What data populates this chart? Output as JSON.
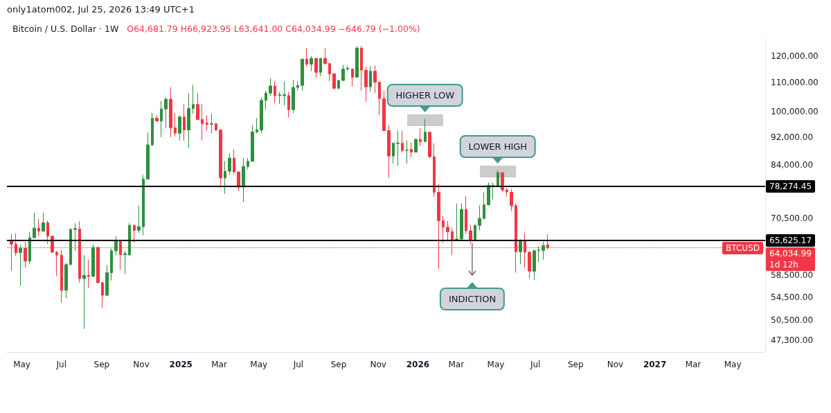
{
  "chart_data": {
    "type": "candlestick",
    "title": "Bitcoin / U.S. Dollar · 1W",
    "subtitle": "O64,681.79 H66,923.95 L63,641.00 C64,034.99 −646.79 (−1.00%)",
    "annotations": [
      "only1atom002, Jul 25, 2026 13:49 UTC+1",
      "BTCUSD",
      "1d 12h",
      {
        "text": "HIGHER LOW",
        "x": "2026-01-12",
        "y": 97700
      },
      {
        "text": "LOWER HIGH",
        "x": "2026-05-04",
        "y": 82600
      },
      "INDICTION"
    ],
    "x": [
      "2024-04-15",
      "2024-04-22",
      "2024-04-29",
      "2024-05-06",
      "2024-05-13",
      "2024-05-20",
      "2024-05-27",
      "2024-06-03",
      "2024-06-10",
      "2024-06-17",
      "2024-06-24",
      "2024-07-01",
      "2024-07-08",
      "2024-07-15",
      "2024-07-22",
      "2024-07-29",
      "2024-08-05",
      "2024-08-12",
      "2024-08-19",
      "2024-08-26",
      "2024-09-02",
      "2024-09-09",
      "2024-09-16",
      "2024-09-23",
      "2024-09-30",
      "2024-10-07",
      "2024-10-14",
      "2024-10-21",
      "2024-10-28",
      "2024-11-04",
      "2024-11-11",
      "2024-11-18",
      "2024-11-25",
      "2024-12-02",
      "2024-12-09",
      "2024-12-16",
      "2024-12-23",
      "2024-12-30",
      "2025-01-06",
      "2025-01-13",
      "2025-01-20",
      "2025-01-27",
      "2025-02-03",
      "2025-02-10",
      "2025-02-17",
      "2025-02-24",
      "2025-03-03",
      "2025-03-10",
      "2025-03-17",
      "2025-03-24",
      "2025-03-31",
      "2025-04-07",
      "2025-04-14",
      "2025-04-21",
      "2025-04-28",
      "2025-05-05",
      "2025-05-12",
      "2025-05-19",
      "2025-05-26",
      "2025-06-02",
      "2025-06-09",
      "2025-06-16",
      "2025-06-23",
      "2025-06-30",
      "2025-07-07",
      "2025-07-14",
      "2025-07-21",
      "2025-07-28",
      "2025-08-04",
      "2025-08-11",
      "2025-08-18",
      "2025-08-25",
      "2025-09-01",
      "2025-09-08",
      "2025-09-15",
      "2025-09-22",
      "2025-09-29",
      "2025-10-06",
      "2025-10-13",
      "2025-10-20",
      "2025-10-27",
      "2025-11-03",
      "2025-11-10",
      "2025-11-17",
      "2025-11-24",
      "2025-12-01",
      "2025-12-08",
      "2025-12-15",
      "2025-12-22",
      "2025-12-29",
      "2026-01-05",
      "2026-01-12",
      "2026-01-19",
      "2026-01-26",
      "2026-02-02",
      "2026-02-09",
      "2026-02-16",
      "2026-02-23",
      "2026-03-02",
      "2026-03-09",
      "2026-03-16",
      "2026-03-23",
      "2026-03-30",
      "2026-04-06",
      "2026-04-13",
      "2026-04-20",
      "2026-04-27",
      "2026-05-04",
      "2026-05-11",
      "2026-05-18",
      "2026-05-25",
      "2026-06-01",
      "2026-06-08",
      "2026-06-15",
      "2026-06-22",
      "2026-06-29",
      "2026-07-06",
      "2026-07-13",
      "2026-07-20"
    ],
    "ohlc": [
      [
        65600,
        67000,
        59400,
        64800
      ],
      [
        64800,
        67100,
        62300,
        63000
      ],
      [
        63000,
        64600,
        56500,
        63900
      ],
      [
        63900,
        65300,
        60000,
        61300
      ],
      [
        61300,
        67500,
        60700,
        66200
      ],
      [
        66200,
        71800,
        66000,
        68300
      ],
      [
        68300,
        70400,
        66500,
        67600
      ],
      [
        67600,
        71800,
        67500,
        69500
      ],
      [
        69500,
        70000,
        64800,
        66500
      ],
      [
        66500,
        66600,
        63000,
        63100
      ],
      [
        63100,
        63400,
        58300,
        62500
      ],
      [
        62500,
        63600,
        53500,
        55700
      ],
      [
        55700,
        60900,
        54300,
        60600
      ],
      [
        60600,
        68300,
        60500,
        68000
      ],
      [
        68000,
        69400,
        63400,
        68200
      ],
      [
        68100,
        69800,
        57100,
        57900
      ],
      [
        57900,
        62500,
        49100,
        58500
      ],
      [
        58500,
        61600,
        56100,
        58300
      ],
      [
        58300,
        64800,
        58200,
        64100
      ],
      [
        64100,
        64300,
        57000,
        57100
      ],
      [
        57100,
        57200,
        52600,
        54800
      ],
      [
        54800,
        60500,
        54700,
        59000
      ],
      [
        59000,
        63900,
        57500,
        63400
      ],
      [
        63400,
        66500,
        62500,
        65500
      ],
      [
        65500,
        65600,
        59600,
        62600
      ],
      [
        62600,
        63400,
        58800,
        62800
      ],
      [
        62600,
        69400,
        62300,
        68900
      ],
      [
        68900,
        69100,
        65100,
        67800
      ],
      [
        67800,
        73500,
        67200,
        68600
      ],
      [
        68600,
        81300,
        66700,
        80200
      ],
      [
        80200,
        93400,
        80100,
        89700
      ],
      [
        89700,
        99600,
        89400,
        97900
      ],
      [
        97900,
        98900,
        96800,
        97000
      ],
      [
        97000,
        103600,
        92000,
        100900
      ],
      [
        100900,
        104900,
        94700,
        104200
      ],
      [
        104200,
        108300,
        92000,
        94900
      ],
      [
        94900,
        99600,
        92300,
        93200
      ],
      [
        93200,
        98800,
        91000,
        98300
      ],
      [
        98300,
        102500,
        91000,
        94200
      ],
      [
        94200,
        106300,
        88800,
        101100
      ],
      [
        101100,
        109200,
        99300,
        102400
      ],
      [
        102400,
        106300,
        97300,
        97500
      ],
      [
        97500,
        102500,
        91000,
        96200
      ],
      [
        96400,
        98900,
        94000,
        95900
      ],
      [
        96000,
        99300,
        93200,
        96200
      ],
      [
        96100,
        96400,
        94000,
        94200
      ],
      [
        94200,
        94400,
        78000,
        80500
      ],
      [
        80500,
        85100,
        76400,
        82300
      ],
      [
        82300,
        87300,
        81300,
        85900
      ],
      [
        85900,
        88400,
        81600,
        82100
      ],
      [
        82100,
        82200,
        77100,
        78100
      ],
      [
        78100,
        85900,
        74400,
        83600
      ],
      [
        83600,
        85900,
        82800,
        85000
      ],
      [
        85000,
        95700,
        84900,
        93600
      ],
      [
        93600,
        97900,
        93200,
        94200
      ],
      [
        94200,
        104800,
        93200,
        103800
      ],
      [
        103800,
        107100,
        100700,
        106300
      ],
      [
        106300,
        111600,
        105400,
        108800
      ],
      [
        108800,
        110600,
        102900,
        105400
      ],
      [
        105400,
        106700,
        102500,
        105700
      ],
      [
        105400,
        110400,
        102100,
        105700
      ],
      [
        105400,
        106700,
        98200,
        100700
      ],
      [
        100700,
        111000,
        99600,
        108300
      ],
      [
        108300,
        110400,
        107200,
        109000
      ],
      [
        109000,
        119000,
        107200,
        118800
      ],
      [
        118800,
        123200,
        115900,
        116900
      ],
      [
        116900,
        120100,
        114200,
        119100
      ],
      [
        119100,
        119300,
        111800,
        113800
      ],
      [
        113800,
        119300,
        112400,
        119100
      ],
      [
        119100,
        123200,
        116700,
        117100
      ],
      [
        117100,
        117200,
        110600,
        113200
      ],
      [
        113200,
        113400,
        107500,
        108000
      ],
      [
        108000,
        111000,
        107700,
        110800
      ],
      [
        110800,
        116600,
        110600,
        115000
      ],
      [
        115000,
        116300,
        114400,
        115300
      ],
      [
        115000,
        115100,
        108700,
        112000
      ],
      [
        112000,
        124000,
        111800,
        123200
      ],
      [
        123200,
        124000,
        107100,
        114600
      ],
      [
        114600,
        115900,
        103300,
        108500
      ],
      [
        108500,
        116100,
        106700,
        114200
      ],
      [
        114200,
        116300,
        106300,
        110200
      ],
      [
        110200,
        110300,
        98900,
        104400
      ],
      [
        104400,
        107100,
        93900,
        94000
      ],
      [
        94000,
        95700,
        80500,
        86500
      ],
      [
        86500,
        90400,
        84400,
        90200
      ],
      [
        90100,
        94000,
        83700,
        90300
      ],
      [
        90200,
        94000,
        87500,
        88100
      ],
      [
        88100,
        91000,
        84400,
        88200
      ],
      [
        88400,
        90400,
        86200,
        87600
      ],
      [
        87600,
        91700,
        87500,
        91300
      ],
      [
        91300,
        94700,
        89400,
        90700
      ],
      [
        90700,
        97700,
        90400,
        93500
      ],
      [
        93500,
        93700,
        85900,
        86300
      ],
      [
        86300,
        90200,
        75700,
        76800
      ],
      [
        76800,
        78900,
        59800,
        70000
      ],
      [
        70000,
        71100,
        65100,
        68500
      ],
      [
        68500,
        69900,
        65400,
        67500
      ],
      [
        67500,
        68400,
        62500,
        65600
      ],
      [
        65600,
        74000,
        65500,
        65900
      ],
      [
        65900,
        74000,
        65800,
        72600
      ],
      [
        72600,
        75800,
        67000,
        67700
      ],
      [
        67700,
        69000,
        64800,
        65800
      ],
      [
        65800,
        69100,
        65600,
        68900
      ],
      [
        68900,
        73600,
        67800,
        70500
      ],
      [
        70500,
        76800,
        70300,
        73700
      ],
      [
        73700,
        79300,
        73600,
        78600
      ],
      [
        78400,
        79300,
        75000,
        78600
      ],
      [
        78400,
        82600,
        78200,
        81900
      ],
      [
        81900,
        82000,
        76800,
        77400
      ],
      [
        77400,
        77900,
        75700,
        76900
      ],
      [
        76800,
        77600,
        72200,
        73500
      ],
      [
        73500,
        74100,
        59000,
        63200
      ],
      [
        63200,
        65800,
        60700,
        65500
      ],
      [
        65500,
        67200,
        60000,
        63100
      ],
      [
        63100,
        63300,
        57900,
        59300
      ],
      [
        59300,
        63700,
        57600,
        63400
      ],
      [
        63500,
        64300,
        61100,
        63600
      ],
      [
        63500,
        65300,
        61600,
        64500
      ],
      [
        64681.79,
        66923.95,
        63641,
        64034.99
      ]
    ],
    "colors": [
      "#f23645",
      "#f23645",
      "#2f8f3f",
      "#f23645",
      "#2f8f3f",
      "#2f8f3f",
      "#f23645",
      "#2f8f3f",
      "#f23645",
      "#f23645",
      "#f23645",
      "#f23645",
      "#2f8f3f",
      "#2f8f3f",
      "#2f8f3f",
      "#f23645",
      "#2f8f3f",
      "#f23645",
      "#2f8f3f",
      "#f23645",
      "#f23645",
      "#2f8f3f",
      "#2f8f3f",
      "#2f8f3f",
      "#f23645",
      "#2f8f3f",
      "#2f8f3f",
      "#f23645",
      "#2f8f3f",
      "#2f8f3f",
      "#2f8f3f",
      "#2f8f3f",
      "#f23645",
      "#2f8f3f",
      "#2f8f3f",
      "#f23645",
      "#f23645",
      "#2f8f3f",
      "#f23645",
      "#2f8f3f",
      "#2f8f3f",
      "#f23645",
      "#f23645",
      "#f23645",
      "#2f8f3f",
      "#f23645",
      "#f23645",
      "#2f8f3f",
      "#2f8f3f",
      "#f23645",
      "#f23645",
      "#2f8f3f",
      "#2f8f3f",
      "#2f8f3f",
      "#2f8f3f",
      "#2f8f3f",
      "#2f8f3f",
      "#2f8f3f",
      "#f23645",
      "#2f8f3f",
      "#2f8f3f",
      "#f23645",
      "#2f8f3f",
      "#2f8f3f",
      "#2f8f3f",
      "#f23645",
      "#2f8f3f",
      "#f23645",
      "#2f8f3f",
      "#f23645",
      "#f23645",
      "#f23645",
      "#2f8f3f",
      "#2f8f3f",
      "#2f8f3f",
      "#f23645",
      "#2f8f3f",
      "#f23645",
      "#f23645",
      "#2f8f3f",
      "#f23645",
      "#f23645",
      "#f23645",
      "#f23645",
      "#2f8f3f",
      "#2f8f3f",
      "#f23645",
      "#2f8f3f",
      "#f23645",
      "#2f8f3f",
      "#f23645",
      "#2f8f3f",
      "#f23645",
      "#f23645",
      "#f23645",
      "#f23645",
      "#f23645",
      "#f23645",
      "#2f8f3f",
      "#2f8f3f",
      "#f23645",
      "#f23645",
      "#2f8f3f",
      "#2f8f3f",
      "#2f8f3f",
      "#2f8f3f",
      "#2f8f3f",
      "#2f8f3f",
      "#f23645",
      "#f23645",
      "#f23645",
      "#f23645",
      "#2f8f3f",
      "#f23645",
      "#f23645",
      "#2f8f3f",
      "#2f8f3f",
      "#2f8f3f",
      "#f23645"
    ],
    "log": true,
    "xlim": [
      "2024-04-08",
      "2027-06-20"
    ],
    "xticks": [
      {
        "value": "2024-05",
        "label": "May"
      },
      {
        "value": "2024-07",
        "label": "Jul"
      },
      {
        "value": "2024-09",
        "label": "Sep"
      },
      {
        "value": "2024-11",
        "label": "Nov"
      },
      {
        "value": "2025",
        "label": "2025"
      },
      {
        "value": "2025-03",
        "label": "Mar"
      },
      {
        "value": "2025-05",
        "label": "May"
      },
      {
        "value": "2025-07",
        "label": "Jul"
      },
      {
        "value": "2025-09",
        "label": "Sep"
      },
      {
        "value": "2025-11",
        "label": "Nov"
      },
      {
        "value": "2026",
        "label": "2026"
      },
      {
        "value": "2026-03",
        "label": "Mar"
      },
      {
        "value": "2026-05",
        "label": "May"
      },
      {
        "value": "2026-07",
        "label": "Jul"
      },
      {
        "value": "2026-09",
        "label": "Sep"
      },
      {
        "value": "2026-11",
        "label": "Nov"
      },
      {
        "value": "2027",
        "label": "2027"
      },
      {
        "value": "2027-03",
        "label": "Mar"
      },
      {
        "value": "2027-05",
        "label": "May"
      }
    ],
    "ylim": [
      45500,
      127000
    ],
    "yticks": [
      {
        "value": 47300,
        "label": "47,300.00"
      },
      {
        "value": 50500,
        "label": "50,500.00"
      },
      {
        "value": 54500,
        "label": "54,500.00"
      },
      {
        "value": 58500,
        "label": "58,500.00"
      },
      {
        "value": 70500,
        "label": "70,500.00"
      },
      {
        "value": 84000,
        "label": "84,000.00"
      },
      {
        "value": 92000,
        "label": "92,000.00"
      },
      {
        "value": 100000,
        "label": "100,000.00"
      },
      {
        "value": 110000,
        "label": "110,000.00"
      },
      {
        "value": 120000,
        "label": "120,000.00"
      }
    ],
    "ref_lines": [
      {
        "axis": "y",
        "value": 78274.45,
        "label": "78,274.45",
        "color": "#000000",
        "line_style": "solid"
      },
      {
        "axis": "y",
        "value": 65625.17,
        "label": "65,625.17",
        "color": "#000000",
        "line_style": "solid"
      },
      {
        "axis": "y",
        "value": 64034.99,
        "label": "64,034.99",
        "color": "#f23645",
        "line_style": "dotted"
      }
    ]
  }
}
